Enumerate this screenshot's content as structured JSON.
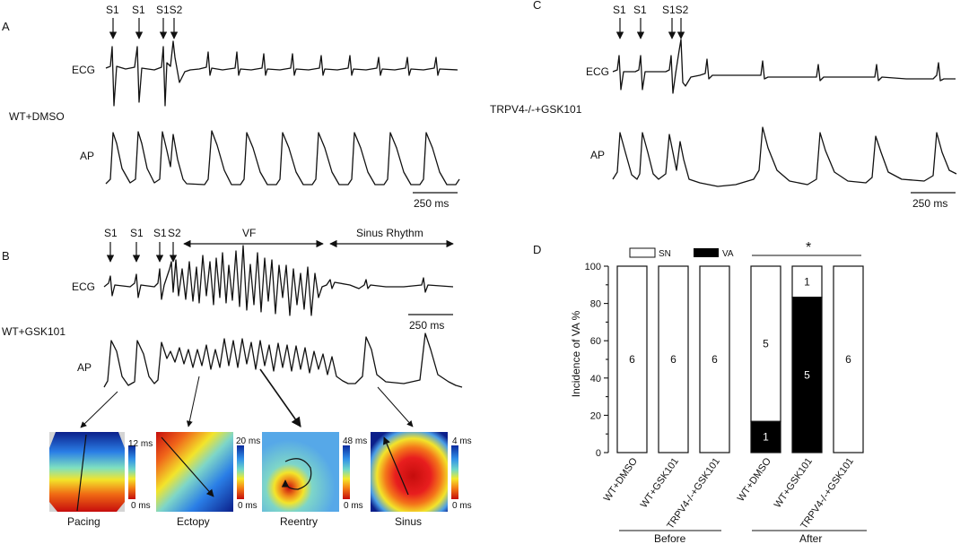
{
  "panels": {
    "A": "A",
    "B": "B",
    "C": "C",
    "D": "D"
  },
  "panel_a": {
    "condition": "WT+DMSO",
    "ecg": "ECG",
    "ap": "AP",
    "s1a": "S1",
    "s1b": "S1",
    "s1s2": "S1S2",
    "scale": "250 ms"
  },
  "panel_b": {
    "condition": "WT+GSK101",
    "ecg": "ECG",
    "ap": "AP",
    "s1a": "S1",
    "s1b": "S1",
    "s1c": "S1",
    "s2": "S2",
    "vf": "VF",
    "sinus_rhythm": "Sinus Rhythm",
    "scale": "250 ms"
  },
  "panel_c": {
    "condition": "TRPV4-/-+GSK101",
    "ecg": "ECG",
    "ap": "AP",
    "s1a": "S1",
    "s1b": "S1",
    "s1s2": "S1S2",
    "scale": "250 ms"
  },
  "maps": [
    {
      "name": "Pacing",
      "max": "12 ms",
      "min": "0 ms"
    },
    {
      "name": "Ectopy",
      "max": "20 ms",
      "min": "0 ms"
    },
    {
      "name": "Reentry",
      "max": "48 ms",
      "min": "0 ms"
    },
    {
      "name": "Sinus",
      "max": "4 ms",
      "min": "0 ms"
    }
  ],
  "chart_data": {
    "type": "bar",
    "ylabel": "Incidence of VA %",
    "ylim": [
      0,
      100
    ],
    "yticks": [
      "0",
      "20",
      "40",
      "60",
      "80",
      "100"
    ],
    "categories": [
      "WT+DMSO",
      "WT+GSK101",
      "TRPV4-/-+GSK101",
      "WT+DMSO",
      "WT+GSK101",
      "TRPV4-/-+GSK101"
    ],
    "groups": [
      "Before",
      "After"
    ],
    "series": [
      {
        "name": "SN",
        "color": "#ffffff",
        "values": [
          100,
          100,
          100,
          83.3,
          16.7,
          100
        ],
        "counts": [
          "6",
          "6",
          "6",
          "5",
          "1",
          "6"
        ]
      },
      {
        "name": "VA",
        "color": "#000000",
        "values": [
          0,
          0,
          0,
          16.7,
          83.3,
          0
        ],
        "counts": [
          "",
          "",
          "",
          "1",
          "5",
          ""
        ]
      }
    ],
    "significance": "*",
    "legend_position": "top"
  }
}
